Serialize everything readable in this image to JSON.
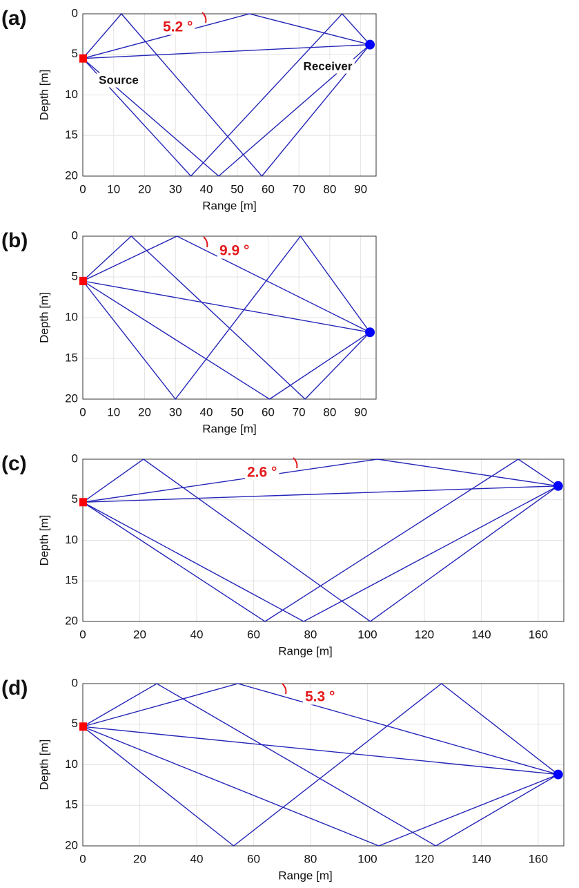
{
  "chart_data": [
    {
      "type": "line",
      "panel_label": "(a)",
      "x_label": "Range [m]",
      "y_label": "Depth [m]",
      "xlim": [
        0,
        95
      ],
      "ylim": [
        0,
        20
      ],
      "y_inverted": true,
      "grid": true,
      "xticks": [
        0,
        10,
        20,
        30,
        40,
        50,
        60,
        70,
        80,
        90
      ],
      "yticks": [
        0,
        5,
        10,
        15,
        20
      ],
      "ray_color": "#2424b8",
      "series": [
        {
          "x": [
            0,
            93
          ],
          "values": [
            5.5,
            3.8
          ]
        },
        {
          "x": [
            0,
            54,
            93
          ],
          "values": [
            5.5,
            0,
            3.8
          ]
        },
        {
          "x": [
            0,
            12.5,
            58,
            93
          ],
          "values": [
            5.5,
            0,
            20,
            3.8
          ]
        },
        {
          "x": [
            0,
            35,
            84,
            93
          ],
          "values": [
            5.5,
            20,
            0,
            3.8
          ]
        },
        {
          "x": [
            0,
            44,
            93
          ],
          "values": [
            5.5,
            20,
            3.8
          ]
        }
      ],
      "source": {
        "x": 0,
        "y": 5.5,
        "color": "#ff0000"
      },
      "receiver": {
        "x": 93,
        "y": 3.8,
        "color": "#0000ff"
      },
      "angle_label": "5.2 °",
      "source_label": "Source",
      "receiver_label": "Receiver"
    },
    {
      "type": "line",
      "panel_label": "(b)",
      "x_label": "Range [m]",
      "y_label": "Depth [m]",
      "xlim": [
        0,
        95
      ],
      "ylim": [
        0,
        20
      ],
      "y_inverted": true,
      "grid": true,
      "xticks": [
        0,
        10,
        20,
        30,
        40,
        50,
        60,
        70,
        80,
        90
      ],
      "yticks": [
        0,
        5,
        10,
        15,
        20
      ],
      "ray_color": "#2424b8",
      "series": [
        {
          "x": [
            0,
            93
          ],
          "values": [
            5.5,
            11.8
          ]
        },
        {
          "x": [
            0,
            30.5,
            93
          ],
          "values": [
            5.5,
            0,
            11.8
          ]
        },
        {
          "x": [
            0,
            15.7,
            72,
            93
          ],
          "values": [
            5.5,
            0,
            20,
            11.8
          ]
        },
        {
          "x": [
            0,
            30,
            70.5,
            93
          ],
          "values": [
            5.5,
            20,
            0,
            11.8
          ]
        },
        {
          "x": [
            0,
            60.5,
            93
          ],
          "values": [
            5.5,
            20,
            11.8
          ]
        }
      ],
      "source": {
        "x": 0,
        "y": 5.5,
        "color": "#ff0000"
      },
      "receiver": {
        "x": 93,
        "y": 11.8,
        "color": "#0000ff"
      },
      "angle_label": "9.9 °"
    },
    {
      "type": "line",
      "panel_label": "(c)",
      "x_label": "Range [m]",
      "y_label": "Depth [m]",
      "xlim": [
        0,
        169
      ],
      "ylim": [
        0,
        20
      ],
      "y_inverted": true,
      "grid": true,
      "xticks": [
        0,
        20,
        40,
        60,
        80,
        100,
        120,
        140,
        160
      ],
      "yticks": [
        0,
        5,
        10,
        15,
        20
      ],
      "ray_color": "#2424b8",
      "series": [
        {
          "x": [
            0,
            167
          ],
          "values": [
            5.3,
            3.3
          ]
        },
        {
          "x": [
            0,
            103.5,
            167
          ],
          "values": [
            5.3,
            0,
            3.3
          ]
        },
        {
          "x": [
            0,
            21.3,
            101,
            167
          ],
          "values": [
            5.3,
            0,
            20,
            3.3
          ]
        },
        {
          "x": [
            0,
            64,
            153,
            167
          ],
          "values": [
            5.3,
            20,
            0,
            3.3
          ]
        },
        {
          "x": [
            0,
            77.6,
            167
          ],
          "values": [
            5.3,
            20,
            3.3
          ]
        }
      ],
      "source": {
        "x": 0,
        "y": 5.3,
        "color": "#ff0000"
      },
      "receiver": {
        "x": 167,
        "y": 3.3,
        "color": "#0000ff"
      },
      "angle_label": "2.6 °"
    },
    {
      "type": "line",
      "panel_label": "(d)",
      "x_label": "Range [m]",
      "y_label": "Depth [m]",
      "xlim": [
        0,
        169
      ],
      "ylim": [
        0,
        20
      ],
      "y_inverted": true,
      "grid": true,
      "xticks": [
        0,
        20,
        40,
        60,
        80,
        100,
        120,
        140,
        160
      ],
      "yticks": [
        0,
        5,
        10,
        15,
        20
      ],
      "ray_color": "#2424b8",
      "series": [
        {
          "x": [
            0,
            167
          ],
          "values": [
            5.3,
            11.2
          ]
        },
        {
          "x": [
            0,
            54.5,
            167
          ],
          "values": [
            5.3,
            0,
            11.2
          ]
        },
        {
          "x": [
            0,
            26,
            124,
            167
          ],
          "values": [
            5.3,
            0,
            20,
            11.2
          ]
        },
        {
          "x": [
            0,
            53,
            126,
            167
          ],
          "values": [
            5.3,
            20,
            0,
            11.2
          ]
        },
        {
          "x": [
            0,
            104,
            167
          ],
          "values": [
            5.3,
            20,
            11.2
          ]
        }
      ],
      "source": {
        "x": 0,
        "y": 5.3,
        "color": "#ff0000"
      },
      "receiver": {
        "x": 167,
        "y": 11.2,
        "color": "#0000ff"
      },
      "angle_label": "5.3 °"
    }
  ]
}
